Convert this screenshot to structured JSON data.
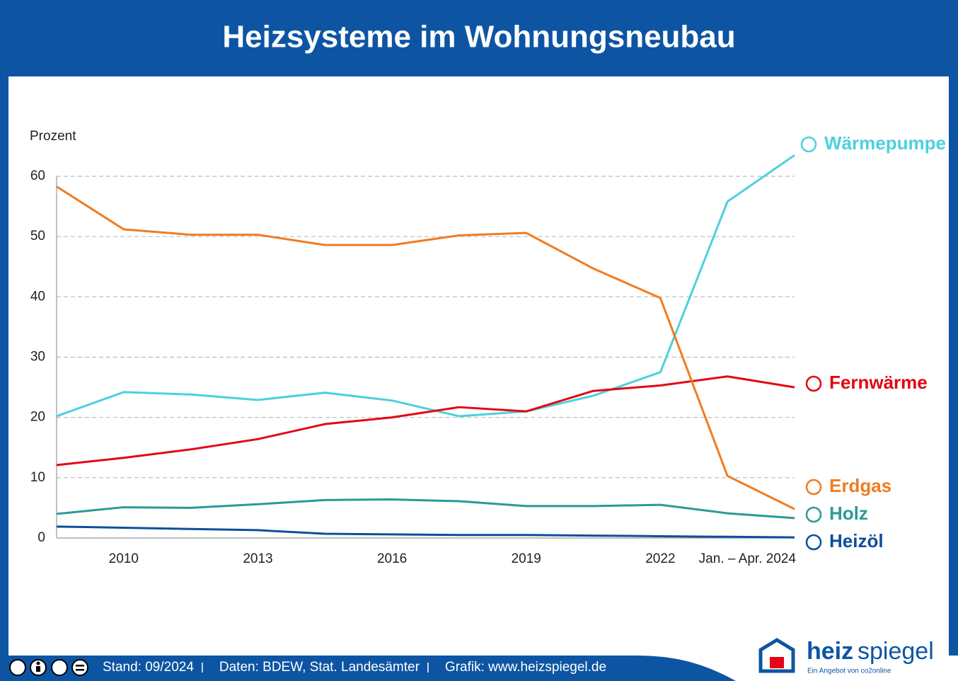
{
  "chart_data": {
    "type": "line",
    "title": "Heizsysteme im Wohnungsneubau",
    "y_label": "Prozent",
    "categories": [
      null,
      "2010",
      null,
      "2013",
      null,
      "2016",
      null,
      "2019",
      null,
      "2022",
      null,
      "Jan. – Apr. 2024"
    ],
    "ylim": [
      0,
      60
    ],
    "yticks": [
      0,
      10,
      20,
      30,
      40,
      50,
      60
    ],
    "grid": true,
    "series": [
      {
        "name": "Wärmepumpe",
        "color": "#4cd0de",
        "values": [
          20.2,
          24.2,
          23.8,
          22.9,
          24.1,
          22.8,
          20.2,
          21.0,
          23.6,
          27.5,
          55.8,
          63.5
        ]
      },
      {
        "name": "Fernwärme",
        "color": "#e30613",
        "values": [
          12.1,
          13.3,
          14.7,
          16.4,
          18.9,
          20.0,
          21.7,
          21.0,
          24.4,
          25.3,
          26.8,
          25.0
        ]
      },
      {
        "name": "Erdgas",
        "color": "#f07c22",
        "values": [
          58.3,
          51.2,
          50.3,
          50.3,
          48.6,
          48.6,
          50.2,
          50.6,
          44.7,
          39.8,
          10.3,
          4.8
        ]
      },
      {
        "name": "Holz",
        "color": "#2b9a98",
        "values": [
          4.0,
          5.1,
          5.0,
          5.6,
          6.3,
          6.4,
          6.1,
          5.3,
          5.3,
          5.5,
          4.1,
          3.3
        ]
      },
      {
        "name": "Heizöl",
        "color": "#0d4f9c",
        "values": [
          1.9,
          1.7,
          1.5,
          1.3,
          0.7,
          0.6,
          0.5,
          0.5,
          0.4,
          0.3,
          0.2,
          0.1
        ]
      }
    ]
  },
  "footer": {
    "items": [
      "Stand: 09/2024",
      "Daten: BDEW, Stat. Landesämter",
      "Grafik: www.heizspiegel.de"
    ]
  },
  "logo": {
    "part1": "heiz",
    "part2": "spiegel",
    "tagline": "Ein Angebot von co2online"
  }
}
